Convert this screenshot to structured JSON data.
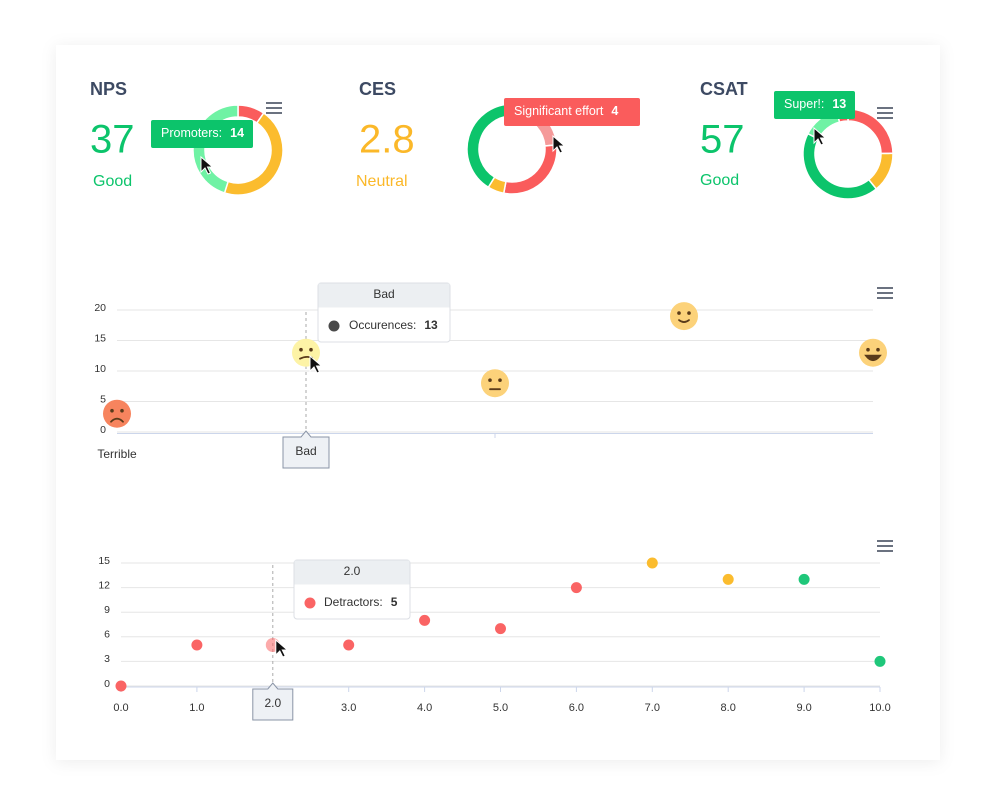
{
  "kpis": [
    {
      "title": "NPS",
      "score": 37,
      "rating": "Good",
      "score_color": "#0cc46b",
      "donut": {
        "type": "pie",
        "values": [
          3,
          14,
          14
        ],
        "colors": [
          "#fa5c5c",
          "#fbbc2e",
          "#6ff2a4"
        ]
      },
      "tooltip": {
        "label": "Promoters:",
        "color": "#0cc46b"
      }
    },
    {
      "title": "CES",
      "score": 2.8,
      "rating": "Neutral",
      "score_color": "#fbb829",
      "donut": {
        "type": "pie",
        "values": [
          4,
          5,
          1,
          7
        ],
        "colors": [
          "#f59a9a",
          "#fa5c5c",
          "#fbbc2e",
          "#0cc46b"
        ]
      },
      "tooltip": {
        "label": "Significant effort",
        "color": "#fa5c5c"
      }
    },
    {
      "title": "CSAT",
      "score": 57,
      "rating": "Good",
      "score_color": "#0cc46b",
      "donut": {
        "type": "pie",
        "values": [
          24,
          14,
          42,
          13,
          4
        ],
        "colors": [
          "#fa5c5c",
          "#fbbc2e",
          "#0cc46b",
          "#6ff2a4",
          "#fa5c5c"
        ]
      },
      "tooltip": {
        "label": "Super!:",
        "color": "#0cc46b"
      }
    }
  ],
  "chart_data": [
    {
      "type": "scatter",
      "categories": [
        "Terrible",
        "Bad",
        null,
        null,
        null
      ],
      "series": [
        {
          "values": [
            3,
            13,
            8,
            19,
            13
          ],
          "colors": [
            "#f7845e",
            "#fdf3a6",
            "#fcd27a",
            "#fcd27a",
            "#fcd27a"
          ]
        }
      ],
      "ylim": [
        0,
        20
      ],
      "yticks": [
        0,
        5,
        10,
        15,
        20
      ],
      "grid": true,
      "tooltip": {
        "label": "Occurences:",
        "color": "#4a4a4a"
      }
    },
    {
      "type": "scatter",
      "series": [
        {
          "color": "#fa6464",
          "x": [
            0,
            1,
            2,
            3,
            4,
            5,
            6
          ],
          "values": [
            0,
            5,
            5,
            5,
            8,
            7,
            12
          ]
        },
        {
          "color": "#fbbc2e",
          "x": [
            7,
            8
          ],
          "values": [
            15,
            13
          ]
        },
        {
          "color": "#1fc77a",
          "x": [
            9,
            10
          ],
          "values": [
            13,
            3
          ]
        }
      ],
      "xlim": [
        0,
        10
      ],
      "xticks": [
        {
          "value": 0,
          "label": "0.0"
        },
        {
          "value": 1,
          "label": "1.0"
        },
        {
          "value": 2,
          "label": "2.0"
        },
        {
          "value": 3,
          "label": "3.0"
        },
        {
          "value": 4,
          "label": "4.0"
        },
        {
          "value": 5,
          "label": "5.0"
        },
        {
          "value": 6,
          "label": "6.0"
        },
        {
          "value": 7,
          "label": "7.0"
        },
        {
          "value": 8,
          "label": "8.0"
        },
        {
          "value": 9,
          "label": "9.0"
        },
        {
          "value": 10,
          "label": "10.0"
        }
      ],
      "ylim": [
        0,
        15
      ],
      "yticks": [
        0,
        3,
        6,
        9,
        12,
        15
      ],
      "grid": true,
      "tooltip": {
        "label": "Detractors:"
      }
    }
  ]
}
